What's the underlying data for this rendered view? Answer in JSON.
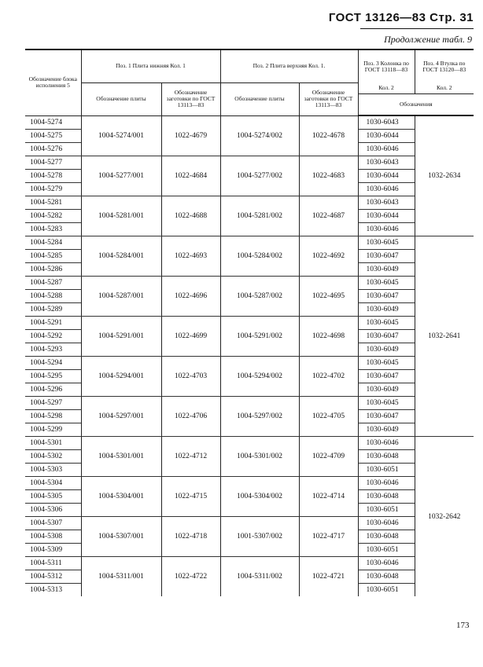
{
  "header": {
    "title": "ГОСТ 13126—83 Стр. 31",
    "continuation": "Продолжение табл. 9"
  },
  "columns": {
    "block": "Обозначение блока исполнения 5",
    "pos1": "Поз. 1 Плита нижняя Кол. 1",
    "pos2": "Поз. 2 Плита верхняя Кол. 1.",
    "plate": "Обозначение плиты",
    "blank": "Обозначение заготовки по ГОСТ 13113—83",
    "pos3": "Поз. 3 Колонка по ГОСТ 13118—83",
    "pos3_qty": "Кол. 2",
    "pos4": "Поз. 4 Втулка по ГОСТ 13120—83",
    "pos4_qty": "Кол. 2",
    "designations": "Обозначения"
  },
  "groups": [
    {
      "blocks": [
        "1004-5274",
        "1004-5275",
        "1004-5276"
      ],
      "plate1": "1004-5274/001",
      "blank1": "1022-4679",
      "plate2": "1004-5274/002",
      "blank2": "1022-4678",
      "columns": [
        "1030-6043",
        "1030-6044",
        "1030-6046"
      ]
    },
    {
      "blocks": [
        "1004-5277",
        "1004-5278",
        "1004-5279"
      ],
      "plate1": "1004-5277/001",
      "blank1": "1022-4684",
      "plate2": "1004-5277/002",
      "blank2": "1022-4683",
      "columns": [
        "1030-6043",
        "1030-6044",
        "1030-6046"
      ]
    },
    {
      "blocks": [
        "1004-5281",
        "1004-5282",
        "1004-5283"
      ],
      "plate1": "1004-5281/001",
      "blank1": "1022-4688",
      "plate2": "1004-5281/002",
      "blank2": "1022-4687",
      "columns": [
        "1030-6043",
        "1030-6044",
        "1030-6046"
      ]
    },
    {
      "blocks": [
        "1004-5284",
        "1004-5285",
        "1004-5286"
      ],
      "plate1": "1004-5284/001",
      "blank1": "1022-4693",
      "plate2": "1004-5284/002",
      "blank2": "1022-4692",
      "columns": [
        "1030-6045",
        "1030-6047",
        "1030-6049"
      ]
    },
    {
      "blocks": [
        "1004-5287",
        "1004-5288",
        "1004-5289"
      ],
      "plate1": "1004-5287/001",
      "blank1": "1022-4696",
      "plate2": "1004-5287/002",
      "blank2": "1022-4695",
      "columns": [
        "1030-6045",
        "1030-6047",
        "1030-6049"
      ]
    },
    {
      "blocks": [
        "1004-5291",
        "1004-5292",
        "1004-5293"
      ],
      "plate1": "1004-5291/001",
      "blank1": "1022-4699",
      "plate2": "1004-5291/002",
      "blank2": "1022-4698",
      "columns": [
        "1030-6045",
        "1030-6047",
        "1030-6049"
      ]
    },
    {
      "blocks": [
        "1004-5294",
        "1004-5295",
        "1004-5296"
      ],
      "plate1": "1004-5294/001",
      "blank1": "1022-4703",
      "plate2": "1004-5294/002",
      "blank2": "1022-4702",
      "columns": [
        "1030-6045",
        "1030-6047",
        "1030-6049"
      ]
    },
    {
      "blocks": [
        "1004-5297",
        "1004-5298",
        "1004-5299"
      ],
      "plate1": "1004-5297/001",
      "blank1": "1022-4706",
      "plate2": "1004-5297/002",
      "blank2": "1022-4705",
      "columns": [
        "1030-6045",
        "1030-6047",
        "1030-6049"
      ]
    },
    {
      "blocks": [
        "1004-5301",
        "1004-5302",
        "1004-5303"
      ],
      "plate1": "1004-5301/001",
      "blank1": "1022-4712",
      "plate2": "1004-5301/002",
      "blank2": "1022-4709",
      "columns": [
        "1030-6046",
        "1030-6048",
        "1030-6051"
      ]
    },
    {
      "blocks": [
        "1004-5304",
        "1004-5305",
        "1004-5306"
      ],
      "plate1": "1004-5304/001",
      "blank1": "1022-4715",
      "plate2": "1004-5304/002",
      "blank2": "1022-4714",
      "columns": [
        "1030-6046",
        "1030-6048",
        "1030-6051"
      ]
    },
    {
      "blocks": [
        "1004-5307",
        "1004-5308",
        "1004-5309"
      ],
      "plate1": "1004-5307/001",
      "blank1": "1022-4718",
      "plate2": "1001-5307/002",
      "blank2": "1022-4717",
      "columns": [
        "1030-6046",
        "1030-6048",
        "1030-6051"
      ]
    },
    {
      "blocks": [
        "1004-5311",
        "1004-5312",
        "1004-5313"
      ],
      "plate1": "1004-5311/001",
      "blank1": "1022-4722",
      "plate2": "1004-5311/002",
      "blank2": "1022-4721",
      "columns": [
        "1030-6046",
        "1030-6048",
        "1030-6051"
      ]
    }
  ],
  "bushings": [
    {
      "value": "1032-2634",
      "groups": 3
    },
    {
      "value": "1032-2641",
      "groups": 5
    },
    {
      "value": "1032-2642",
      "groups": 4
    }
  ],
  "page_number": "173"
}
